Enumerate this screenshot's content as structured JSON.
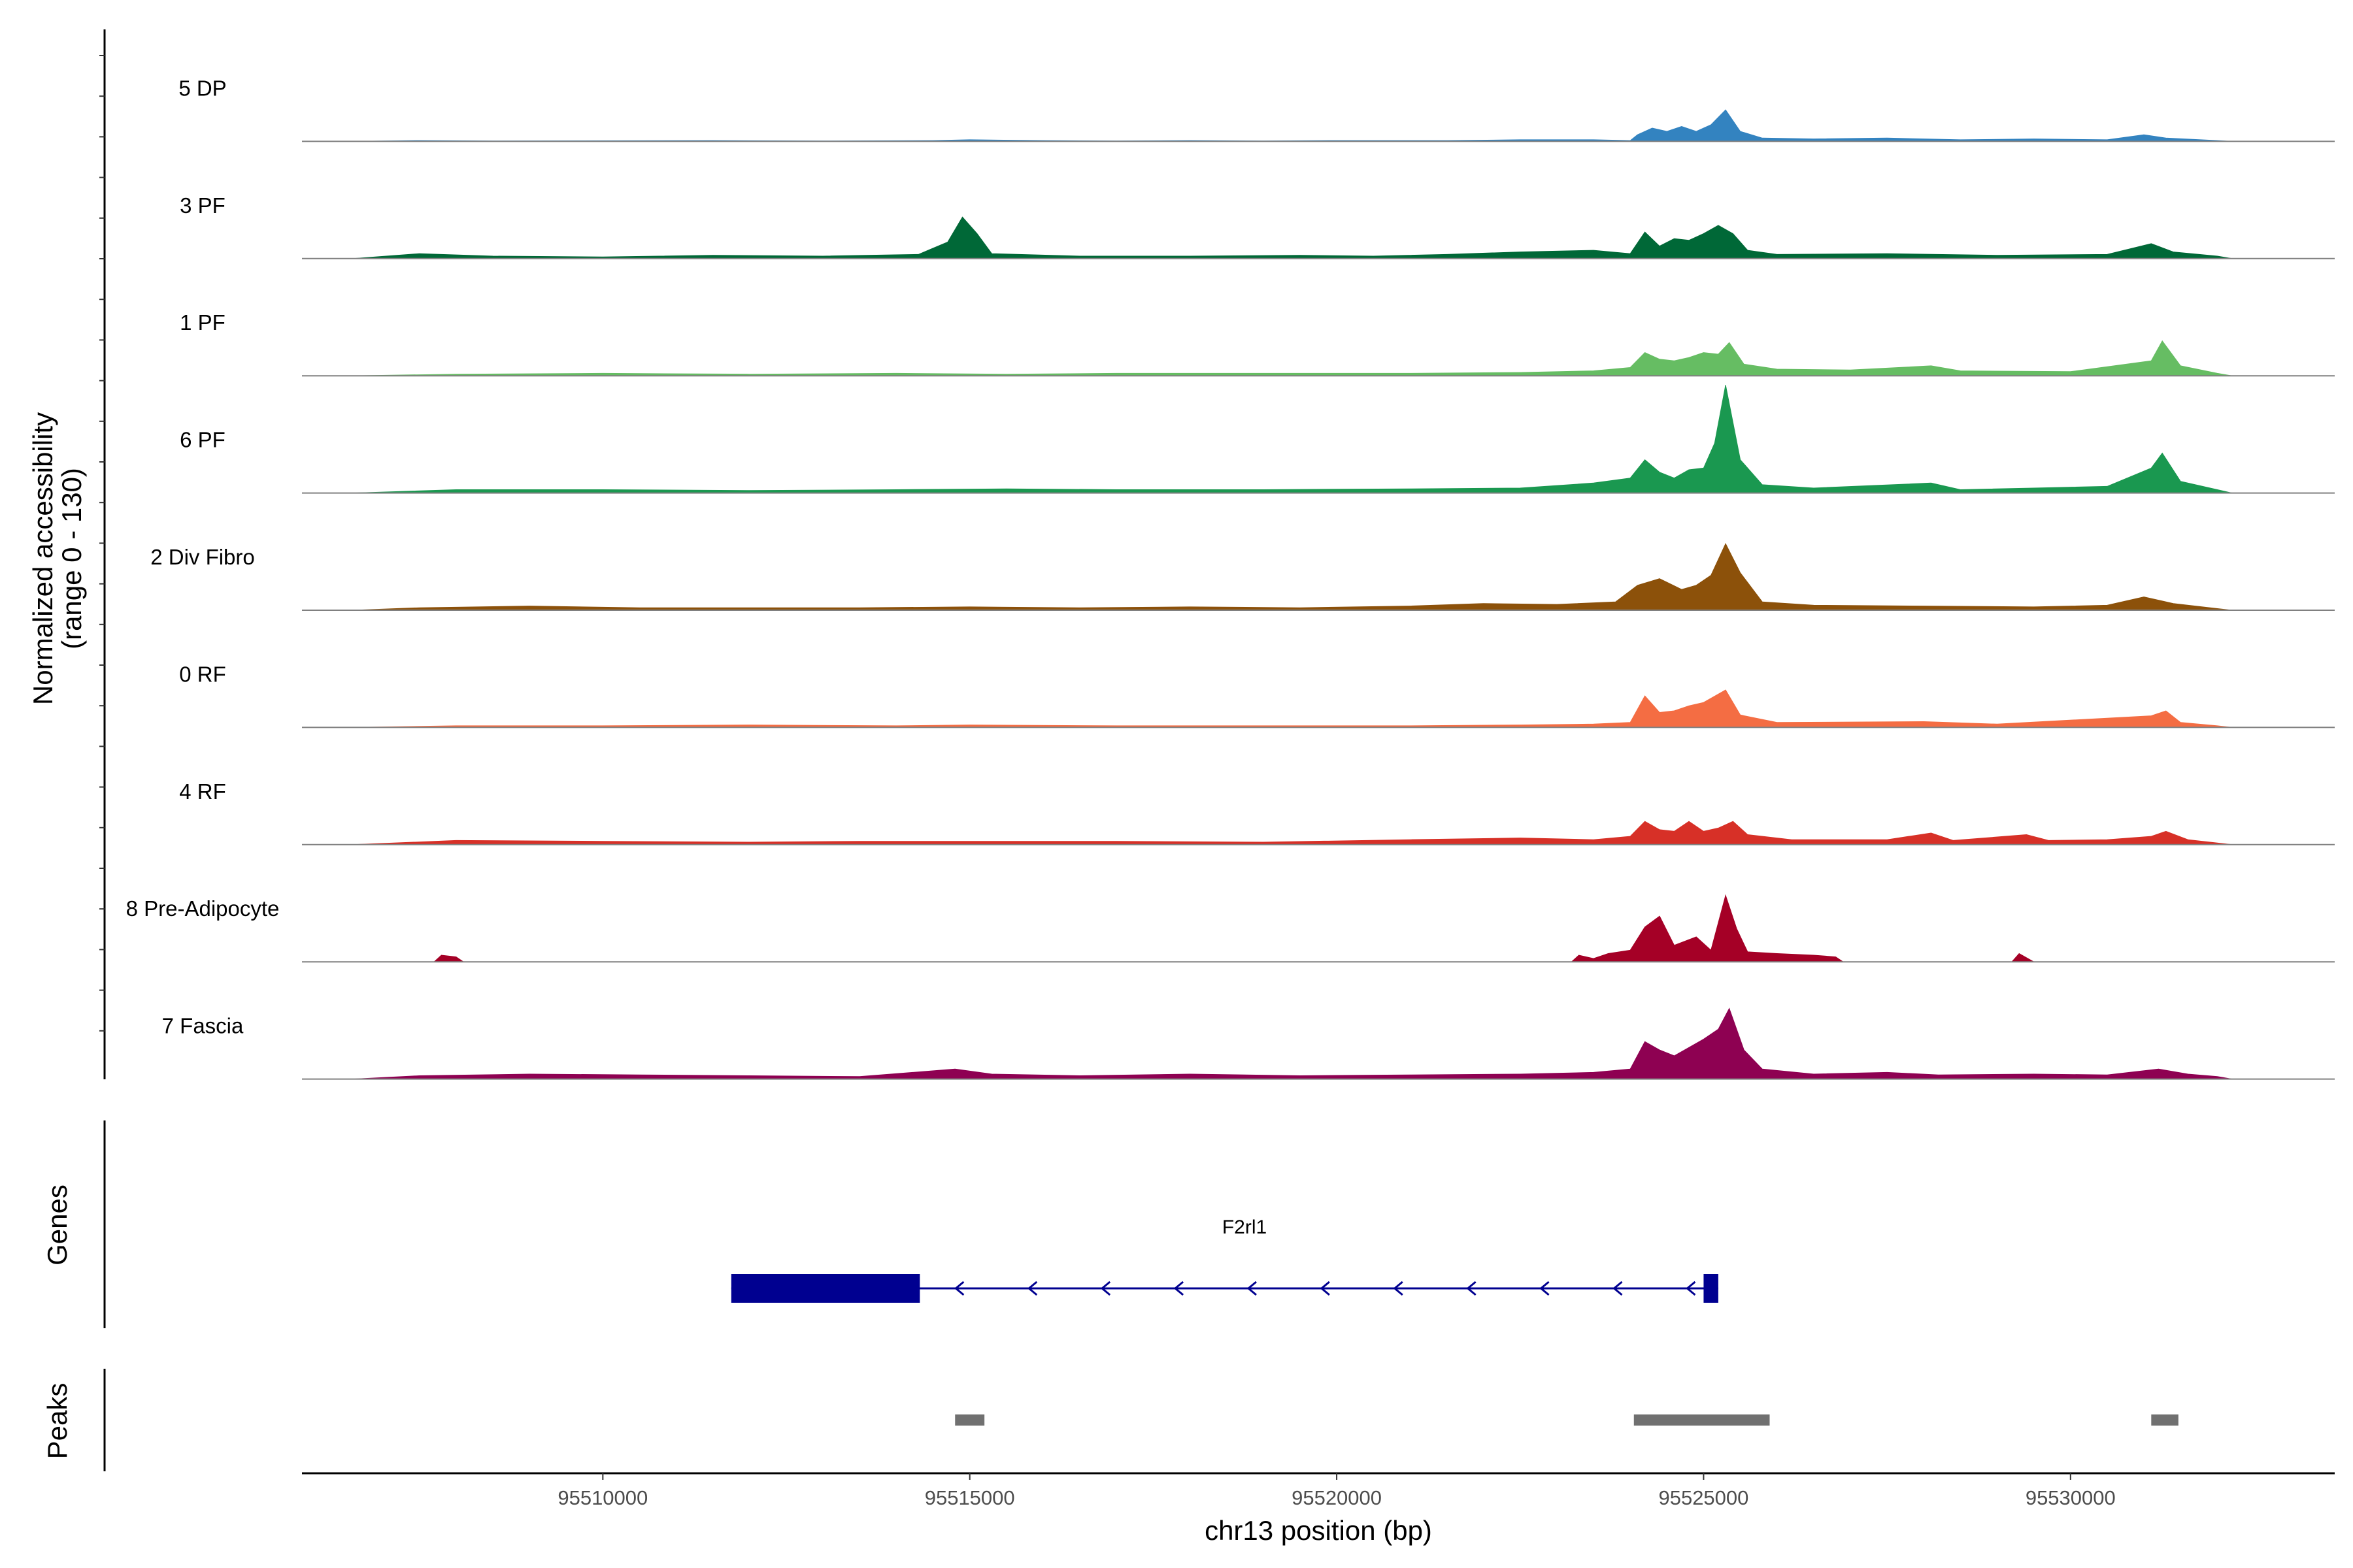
{
  "chart_data": {
    "type": "area",
    "title": "",
    "ylabel": "Normalized accessibility",
    "ylabel_range": "(range 0 - 130)",
    "xlabel": "chr13 position (bp)",
    "xlim": [
      95505900,
      95533600
    ],
    "ylim": [
      0,
      130
    ],
    "x_ticks": [
      95510000,
      95515000,
      95520000,
      95525000,
      95530000
    ],
    "x_tick_labels": [
      "95510000",
      "95515000",
      "95520000",
      "95525000",
      "95530000"
    ],
    "series": [
      {
        "name": "5 DP",
        "color": "#3383C0",
        "points": [
          [
            95506600,
            0
          ],
          [
            95507500,
            1
          ],
          [
            95508500,
            0.5
          ],
          [
            95511500,
            1
          ],
          [
            95513000,
            0.5
          ],
          [
            95514500,
            1
          ],
          [
            95515000,
            2
          ],
          [
            95516000,
            1
          ],
          [
            95517000,
            0.5
          ],
          [
            95518000,
            1
          ],
          [
            95519000,
            0.5
          ],
          [
            95520000,
            1
          ],
          [
            95521500,
            1
          ],
          [
            95522500,
            2
          ],
          [
            95523500,
            2
          ],
          [
            95524000,
            1
          ],
          [
            95524100,
            8
          ],
          [
            95524300,
            16
          ],
          [
            95524500,
            12
          ],
          [
            95524700,
            18
          ],
          [
            95524900,
            12
          ],
          [
            95525100,
            20
          ],
          [
            95525300,
            38
          ],
          [
            95525500,
            12
          ],
          [
            95525800,
            4
          ],
          [
            95526500,
            3
          ],
          [
            95527500,
            4
          ],
          [
            95528500,
            2
          ],
          [
            95529500,
            3
          ],
          [
            95530500,
            2
          ],
          [
            95531000,
            8
          ],
          [
            95531300,
            4
          ],
          [
            95532000,
            1
          ],
          [
            95532200,
            0
          ]
        ]
      },
      {
        "name": "3 PF",
        "color": "#006837",
        "points": [
          [
            95506600,
            0
          ],
          [
            95507500,
            6
          ],
          [
            95508500,
            3
          ],
          [
            95510000,
            2
          ],
          [
            95511500,
            4
          ],
          [
            95513000,
            3
          ],
          [
            95514300,
            5
          ],
          [
            95514700,
            20
          ],
          [
            95514900,
            50
          ],
          [
            95515100,
            30
          ],
          [
            95515300,
            6
          ],
          [
            95516500,
            3
          ],
          [
            95518000,
            3
          ],
          [
            95519500,
            4
          ],
          [
            95520500,
            3
          ],
          [
            95521500,
            5
          ],
          [
            95522500,
            8
          ],
          [
            95523500,
            10
          ],
          [
            95524000,
            6
          ],
          [
            95524200,
            32
          ],
          [
            95524400,
            15
          ],
          [
            95524600,
            24
          ],
          [
            95524800,
            22
          ],
          [
            95525000,
            30
          ],
          [
            95525200,
            40
          ],
          [
            95525400,
            30
          ],
          [
            95525600,
            10
          ],
          [
            95526000,
            5
          ],
          [
            95527500,
            6
          ],
          [
            95529000,
            4
          ],
          [
            95530500,
            5
          ],
          [
            95531100,
            18
          ],
          [
            95531400,
            8
          ],
          [
            95532000,
            3
          ],
          [
            95532200,
            0
          ]
        ]
      },
      {
        "name": "1 PF",
        "color": "#66BD63",
        "points": [
          [
            95506600,
            0
          ],
          [
            95508000,
            2
          ],
          [
            95510000,
            3
          ],
          [
            95512000,
            2
          ],
          [
            95514000,
            3
          ],
          [
            95515500,
            2
          ],
          [
            95517000,
            3
          ],
          [
            95519000,
            3
          ],
          [
            95521000,
            3
          ],
          [
            95522500,
            4
          ],
          [
            95523500,
            6
          ],
          [
            95524000,
            10
          ],
          [
            95524200,
            28
          ],
          [
            95524400,
            20
          ],
          [
            95524600,
            18
          ],
          [
            95524800,
            22
          ],
          [
            95525000,
            28
          ],
          [
            95525200,
            26
          ],
          [
            95525350,
            40
          ],
          [
            95525550,
            14
          ],
          [
            95526000,
            8
          ],
          [
            95527000,
            7
          ],
          [
            95528100,
            12
          ],
          [
            95528500,
            6
          ],
          [
            95530000,
            5
          ],
          [
            95531100,
            18
          ],
          [
            95531250,
            42
          ],
          [
            95531500,
            12
          ],
          [
            95532000,
            3
          ],
          [
            95532200,
            0
          ]
        ]
      },
      {
        "name": "6 PF",
        "color": "#1A9850",
        "points": [
          [
            95506600,
            0
          ],
          [
            95508000,
            4
          ],
          [
            95510000,
            4
          ],
          [
            95512000,
            3
          ],
          [
            95514000,
            4
          ],
          [
            95515500,
            5
          ],
          [
            95517000,
            4
          ],
          [
            95519000,
            4
          ],
          [
            95521000,
            5
          ],
          [
            95522500,
            6
          ],
          [
            95523500,
            12
          ],
          [
            95524000,
            18
          ],
          [
            95524200,
            40
          ],
          [
            95524400,
            25
          ],
          [
            95524600,
            18
          ],
          [
            95524800,
            28
          ],
          [
            95525000,
            30
          ],
          [
            95525150,
            60
          ],
          [
            95525300,
            130
          ],
          [
            95525500,
            40
          ],
          [
            95525800,
            10
          ],
          [
            95526500,
            6
          ],
          [
            95528100,
            12
          ],
          [
            95528500,
            4
          ],
          [
            95529500,
            6
          ],
          [
            95530500,
            8
          ],
          [
            95531100,
            30
          ],
          [
            95531250,
            48
          ],
          [
            95531500,
            14
          ],
          [
            95532000,
            4
          ],
          [
            95532200,
            0
          ]
        ]
      },
      {
        "name": "2 Div Fibro",
        "color": "#8C510A",
        "points": [
          [
            95506600,
            0
          ],
          [
            95507500,
            3
          ],
          [
            95509000,
            5
          ],
          [
            95510500,
            3
          ],
          [
            95512000,
            3
          ],
          [
            95513500,
            3
          ],
          [
            95515000,
            4
          ],
          [
            95516500,
            3
          ],
          [
            95518000,
            4
          ],
          [
            95519500,
            3
          ],
          [
            95521000,
            5
          ],
          [
            95522000,
            8
          ],
          [
            95523000,
            7
          ],
          [
            95523800,
            10
          ],
          [
            95524100,
            30
          ],
          [
            95524400,
            38
          ],
          [
            95524700,
            25
          ],
          [
            95524900,
            30
          ],
          [
            95525100,
            42
          ],
          [
            95525300,
            80
          ],
          [
            95525500,
            45
          ],
          [
            95525800,
            10
          ],
          [
            95526500,
            6
          ],
          [
            95528000,
            5
          ],
          [
            95529500,
            4
          ],
          [
            95530500,
            6
          ],
          [
            95531000,
            16
          ],
          [
            95531400,
            8
          ],
          [
            95532000,
            2
          ],
          [
            95532200,
            0
          ]
        ]
      },
      {
        "name": "0 RF",
        "color": "#F46D43",
        "points": [
          [
            95506600,
            0
          ],
          [
            95508000,
            2
          ],
          [
            95510000,
            2
          ],
          [
            95512000,
            3
          ],
          [
            95514000,
            2
          ],
          [
            95515000,
            3
          ],
          [
            95517000,
            2
          ],
          [
            95519000,
            2
          ],
          [
            95521000,
            2
          ],
          [
            95522500,
            3
          ],
          [
            95523500,
            4
          ],
          [
            95524000,
            6
          ],
          [
            95524200,
            38
          ],
          [
            95524400,
            18
          ],
          [
            95524600,
            20
          ],
          [
            95524800,
            26
          ],
          [
            95525000,
            30
          ],
          [
            95525300,
            45
          ],
          [
            95525500,
            15
          ],
          [
            95526000,
            6
          ],
          [
            95528000,
            7
          ],
          [
            95529000,
            4
          ],
          [
            95531100,
            14
          ],
          [
            95531300,
            20
          ],
          [
            95531500,
            6
          ],
          [
            95532000,
            2
          ],
          [
            95532200,
            0
          ]
        ]
      },
      {
        "name": "4 RF",
        "color": "#D73027",
        "points": [
          [
            95506600,
            0
          ],
          [
            95508000,
            5
          ],
          [
            95510000,
            4
          ],
          [
            95512000,
            3
          ],
          [
            95513500,
            4
          ],
          [
            95515000,
            4
          ],
          [
            95517000,
            4
          ],
          [
            95519000,
            3
          ],
          [
            95521000,
            6
          ],
          [
            95522500,
            8
          ],
          [
            95523500,
            6
          ],
          [
            95524000,
            10
          ],
          [
            95524200,
            28
          ],
          [
            95524400,
            18
          ],
          [
            95524600,
            16
          ],
          [
            95524800,
            28
          ],
          [
            95525000,
            16
          ],
          [
            95525200,
            20
          ],
          [
            95525400,
            28
          ],
          [
            95525600,
            12
          ],
          [
            95526200,
            6
          ],
          [
            95527500,
            6
          ],
          [
            95528100,
            14
          ],
          [
            95528400,
            5
          ],
          [
            95529400,
            12
          ],
          [
            95529700,
            5
          ],
          [
            95530500,
            6
          ],
          [
            95531100,
            10
          ],
          [
            95531300,
            16
          ],
          [
            95531600,
            6
          ],
          [
            95532000,
            2
          ],
          [
            95532200,
            0
          ]
        ]
      },
      {
        "name": "8 Pre-Adipocyte",
        "color": "#A50026",
        "points": [
          [
            95507700,
            0
          ],
          [
            95507800,
            8
          ],
          [
            95508000,
            6
          ],
          [
            95508100,
            0
          ],
          [
            95523200,
            0
          ],
          [
            95523300,
            8
          ],
          [
            95523500,
            4
          ],
          [
            95523700,
            10
          ],
          [
            95524000,
            14
          ],
          [
            95524200,
            42
          ],
          [
            95524400,
            55
          ],
          [
            95524600,
            20
          ],
          [
            95524900,
            30
          ],
          [
            95525100,
            14
          ],
          [
            95525300,
            80
          ],
          [
            95525450,
            40
          ],
          [
            95525600,
            12
          ],
          [
            95526000,
            10
          ],
          [
            95526500,
            8
          ],
          [
            95526800,
            6
          ],
          [
            95526900,
            0
          ],
          [
            95529200,
            0
          ],
          [
            95529300,
            10
          ],
          [
            95529500,
            0
          ]
        ]
      },
      {
        "name": "7 Fascia",
        "color": "#8E0152",
        "points": [
          [
            95506600,
            0
          ],
          [
            95507500,
            4
          ],
          [
            95509000,
            6
          ],
          [
            95510500,
            5
          ],
          [
            95512000,
            4
          ],
          [
            95513500,
            3
          ],
          [
            95514800,
            12
          ],
          [
            95515300,
            6
          ],
          [
            95516500,
            4
          ],
          [
            95518000,
            6
          ],
          [
            95519500,
            4
          ],
          [
            95521000,
            5
          ],
          [
            95522500,
            6
          ],
          [
            95523500,
            8
          ],
          [
            95524000,
            12
          ],
          [
            95524200,
            45
          ],
          [
            95524400,
            35
          ],
          [
            95524600,
            28
          ],
          [
            95524800,
            38
          ],
          [
            95525000,
            48
          ],
          [
            95525200,
            60
          ],
          [
            95525350,
            85
          ],
          [
            95525550,
            35
          ],
          [
            95525800,
            12
          ],
          [
            95526500,
            6
          ],
          [
            95527500,
            8
          ],
          [
            95528200,
            5
          ],
          [
            95529500,
            6
          ],
          [
            95530500,
            5
          ],
          [
            95531200,
            12
          ],
          [
            95531600,
            6
          ],
          [
            95532000,
            3
          ],
          [
            95532200,
            0
          ]
        ]
      }
    ],
    "genes_track": {
      "label": "Genes",
      "gene": "F2rl1",
      "color": "#000090",
      "strand": "-",
      "start": 95511750,
      "end": 95525200,
      "thick_start": 95511750,
      "thick_end": 95514320,
      "exon2_start": 95525000,
      "exon2_end": 95525200
    },
    "peaks_track": {
      "label": "Peaks",
      "color": "#707070",
      "peaks": [
        [
          95514800,
          95515200
        ],
        [
          95524050,
          95525900
        ],
        [
          95531100,
          95531470
        ]
      ]
    }
  }
}
